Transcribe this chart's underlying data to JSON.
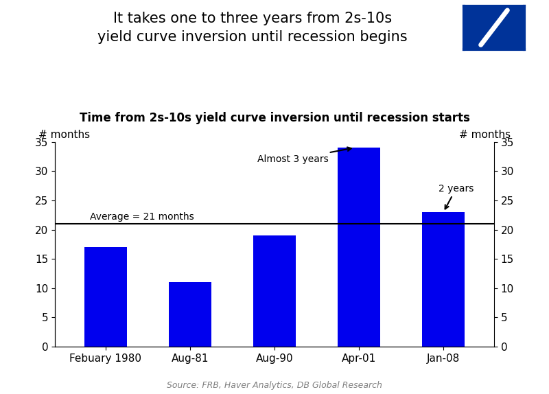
{
  "title_main": "It takes one to three years from 2s-10s\nyield curve inversion until recession begins",
  "subtitle": "Time from 2s-10s yield curve inversion until recession starts",
  "categories": [
    "Febuary 1980",
    "Aug-81",
    "Aug-90",
    "Apr-01",
    "Jan-08"
  ],
  "values": [
    17,
    11,
    19,
    34,
    23
  ],
  "bar_color": "#0000EE",
  "average_line": 21,
  "average_label": "Average = 21 months",
  "ylim": [
    0,
    35
  ],
  "yticks": [
    0,
    5,
    10,
    15,
    20,
    25,
    30,
    35
  ],
  "ylabel_left": "# months",
  "ylabel_right": "# months",
  "annotation1_text": "Almost 3 years",
  "annotation1_bar_index": 3,
  "annotation1_value": 34,
  "annotation2_text": "2 years",
  "annotation2_bar_index": 4,
  "annotation2_value": 23,
  "source_text": "Source: FRB, Haver Analytics, DB Global Research",
  "background_color": "#ffffff",
  "title_fontsize": 15,
  "subtitle_fontsize": 12,
  "axis_label_fontsize": 11,
  "tick_fontsize": 11,
  "annotation_fontsize": 10,
  "source_fontsize": 9,
  "logo_box_color": "#003399",
  "logo_slash_color": "#ffffff"
}
